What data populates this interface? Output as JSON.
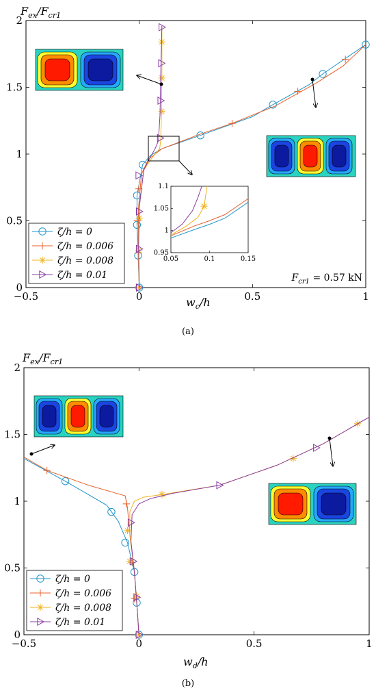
{
  "colors": {
    "s0": "#1f95c8",
    "s1": "#e8602a",
    "s2": "#f0b21e",
    "s3": "#8a3fa0"
  },
  "chart_data": [
    {
      "panel": "a",
      "type": "line",
      "caption": "(a)",
      "ylabel": "F_ex/F_cr1",
      "xlabel": "w_c/h",
      "xlim": [
        -0.5,
        1
      ],
      "ylim": [
        0,
        2
      ],
      "xticks": [
        -0.5,
        0,
        0.5,
        1
      ],
      "xtick_labels": [
        "−0.5",
        "0",
        "0.5",
        "1"
      ],
      "yticks": [
        0,
        0.5,
        1,
        1.5,
        2
      ],
      "ytick_labels": [
        "0",
        "0.5",
        "1",
        "1.5",
        "2"
      ],
      "legend_position": "bottom-left",
      "annotation": "F_cr1 = 0.57 kN",
      "series": [
        {
          "name": "ζ/h = 0",
          "marker": "circle",
          "points": [
            [
              0,
              0
            ],
            [
              -0.005,
              0.24
            ],
            [
              -0.01,
              0.47
            ],
            [
              -0.01,
              0.69
            ],
            [
              0.015,
              0.92
            ],
            [
              0.05,
              0.99
            ],
            [
              0.1,
              1.04
            ],
            [
              0.27,
              1.14
            ],
            [
              0.5,
              1.28
            ],
            [
              0.59,
              1.37
            ],
            [
              0.75,
              1.52
            ],
            [
              0.81,
              1.6
            ],
            [
              1,
              1.82
            ]
          ],
          "marker_points": [
            [
              0,
              0
            ],
            [
              -0.005,
              0.24
            ],
            [
              -0.01,
              0.47
            ],
            [
              -0.01,
              0.69
            ],
            [
              0.015,
              0.92
            ],
            [
              0.27,
              1.14
            ],
            [
              0.59,
              1.37
            ],
            [
              0.81,
              1.6
            ],
            [
              1,
              1.82
            ]
          ]
        },
        {
          "name": "ζ/h = 0.006",
          "marker": "plus",
          "points": [
            [
              0,
              0
            ],
            [
              -0.005,
              0.3
            ],
            [
              -0.003,
              0.6
            ],
            [
              0.01,
              0.85
            ],
            [
              0.04,
              0.96
            ],
            [
              0.1,
              1.04
            ],
            [
              0.27,
              1.15
            ],
            [
              0.41,
              1.23
            ],
            [
              0.6,
              1.36
            ],
            [
              0.78,
              1.53
            ],
            [
              0.9,
              1.66
            ],
            [
              1,
              1.82
            ]
          ],
          "marker_points": [
            [
              0,
              0
            ],
            [
              -0.005,
              0.26
            ],
            [
              -0.008,
              0.5
            ],
            [
              -0.002,
              0.74
            ],
            [
              0.41,
              1.23
            ],
            [
              0.7,
              1.47
            ],
            [
              0.91,
              1.71
            ]
          ]
        },
        {
          "name": "ζ/h = 0.008",
          "marker": "asterisk",
          "points": [
            [
              0,
              0
            ],
            [
              -0.005,
              0.3
            ],
            [
              0.0,
              0.6
            ],
            [
              0.02,
              0.88
            ],
            [
              0.06,
              0.98
            ],
            [
              0.09,
              1.04
            ],
            [
              0.095,
              1.1
            ],
            [
              0.098,
              1.3
            ],
            [
              0.1,
              1.6
            ],
            [
              0.1,
              1.96
            ]
          ],
          "marker_points": [
            [
              0,
              0
            ],
            [
              -0.003,
              0.28
            ],
            [
              0.0,
              0.52
            ],
            [
              0.1,
              1.32
            ],
            [
              0.1,
              1.57
            ],
            [
              0.1,
              1.84
            ]
          ]
        },
        {
          "name": "ζ/h = 0.01",
          "marker": "triangle",
          "points": [
            [
              0,
              0
            ],
            [
              -0.003,
              0.3
            ],
            [
              0.0,
              0.6
            ],
            [
              0.02,
              0.88
            ],
            [
              0.05,
              0.98
            ],
            [
              0.07,
              1.04
            ],
            [
              0.085,
              1.1
            ],
            [
              0.092,
              1.3
            ],
            [
              0.095,
              1.6
            ],
            [
              0.1,
              1.96
            ]
          ],
          "marker_points": [
            [
              0,
              0
            ],
            [
              0.0,
              0.29
            ],
            [
              0.0,
              0.57
            ],
            [
              -0.002,
              0.84
            ],
            [
              0.093,
              1.12
            ],
            [
              0.095,
              1.4
            ],
            [
              0.098,
              1.68
            ],
            [
              0.1,
              1.95
            ]
          ]
        }
      ]
    },
    {
      "panel": "b",
      "type": "line",
      "caption": "(b)",
      "ylabel": "F_ex/F_cr1",
      "xlabel": "w_d/h",
      "xlim": [
        -0.5,
        1
      ],
      "ylim": [
        0,
        2
      ],
      "xticks": [
        -0.5,
        0,
        0.5,
        1
      ],
      "xtick_labels": [
        "−0.5",
        "0",
        "0.5",
        "1"
      ],
      "yticks": [
        0,
        0.5,
        1,
        1.5,
        2
      ],
      "ytick_labels": [
        "0",
        "0.5",
        "1",
        "1.5",
        "2"
      ],
      "legend_position": "bottom-left",
      "series": [
        {
          "name": "ζ/h = 0",
          "marker": "circle",
          "points": [
            [
              0,
              0
            ],
            [
              -0.01,
              0.24
            ],
            [
              -0.02,
              0.47
            ],
            [
              -0.05,
              0.69
            ],
            [
              -0.09,
              0.85
            ],
            [
              -0.14,
              0.97
            ],
            [
              -0.32,
              1.15
            ],
            [
              -0.5,
              1.32
            ]
          ],
          "marker_points": [
            [
              0,
              0
            ],
            [
              -0.01,
              0.24
            ],
            [
              -0.02,
              0.47
            ],
            [
              -0.06,
              0.69
            ],
            [
              -0.12,
              0.92
            ],
            [
              -0.32,
              1.15
            ]
          ]
        },
        {
          "name": "ζ/h = 0.006",
          "marker": "plus",
          "points": [
            [
              0,
              0
            ],
            [
              -0.01,
              0.24
            ],
            [
              -0.02,
              0.47
            ],
            [
              -0.04,
              0.75
            ],
            [
              -0.05,
              0.95
            ],
            [
              -0.06,
              1.04
            ],
            [
              -0.1,
              1.06
            ],
            [
              -0.22,
              1.12
            ],
            [
              -0.4,
              1.23
            ],
            [
              -0.5,
              1.33
            ]
          ],
          "marker_points": [
            [
              0,
              0
            ],
            [
              -0.02,
              0.27
            ],
            [
              -0.03,
              0.54
            ],
            [
              -0.055,
              0.98
            ],
            [
              -0.4,
              1.23
            ]
          ]
        },
        {
          "name": "ζ/h = 0.008",
          "marker": "asterisk",
          "points": [
            [
              0,
              0
            ],
            [
              -0.01,
              0.24
            ],
            [
              -0.02,
              0.47
            ],
            [
              -0.04,
              0.75
            ],
            [
              -0.04,
              0.92
            ],
            [
              -0.02,
              1.0
            ],
            [
              0.02,
              1.03
            ],
            [
              0.1,
              1.05
            ],
            [
              0.35,
              1.12
            ],
            [
              0.6,
              1.27
            ],
            [
              0.8,
              1.43
            ],
            [
              1,
              1.63
            ]
          ],
          "marker_points": [
            [
              0,
              0
            ],
            [
              -0.01,
              0.29
            ],
            [
              -0.04,
              0.55
            ],
            [
              -0.05,
              0.78
            ],
            [
              0.1,
              1.05
            ],
            [
              0.67,
              1.32
            ],
            [
              0.95,
              1.58
            ]
          ]
        },
        {
          "name": "ζ/h = 0.01",
          "marker": "triangle",
          "points": [
            [
              0,
              0
            ],
            [
              -0.01,
              0.24
            ],
            [
              -0.02,
              0.47
            ],
            [
              -0.035,
              0.7
            ],
            [
              -0.03,
              0.9
            ],
            [
              0.0,
              0.98
            ],
            [
              0.05,
              1.02
            ],
            [
              0.15,
              1.06
            ],
            [
              0.35,
              1.12
            ],
            [
              0.6,
              1.27
            ],
            [
              0.8,
              1.43
            ],
            [
              1,
              1.63
            ]
          ],
          "marker_points": [
            [
              0,
              0
            ],
            [
              -0.01,
              0.28
            ],
            [
              -0.025,
              0.55
            ],
            [
              -0.035,
              0.84
            ],
            [
              0.35,
              1.12
            ],
            [
              0.77,
              1.4
            ]
          ]
        }
      ]
    }
  ],
  "inset": {
    "xlim": [
      0.05,
      0.15
    ],
    "ylim": [
      0.95,
      1.1
    ],
    "xtick_labels": [
      "0.05",
      "0.1",
      "0.15"
    ],
    "ytick_labels": [
      "0.95",
      "1",
      "1.05",
      "1.1"
    ],
    "series": [
      {
        "points": [
          [
            0.05,
            0.983
          ],
          [
            0.08,
            1.002
          ],
          [
            0.1,
            1.014
          ],
          [
            0.12,
            1.028
          ],
          [
            0.15,
            1.064
          ]
        ]
      },
      {
        "points": [
          [
            0.05,
            0.988
          ],
          [
            0.08,
            1.01
          ],
          [
            0.1,
            1.022
          ],
          [
            0.12,
            1.036
          ],
          [
            0.15,
            1.072
          ]
        ]
      },
      {
        "points": [
          [
            0.05,
            0.99
          ],
          [
            0.07,
            1.01
          ],
          [
            0.085,
            1.03
          ],
          [
            0.093,
            1.055
          ],
          [
            0.095,
            1.08
          ],
          [
            0.097,
            1.1
          ]
        ]
      },
      {
        "points": [
          [
            0.05,
            0.995
          ],
          [
            0.065,
            1.015
          ],
          [
            0.078,
            1.045
          ],
          [
            0.085,
            1.075
          ],
          [
            0.09,
            1.1
          ]
        ]
      }
    ]
  }
}
